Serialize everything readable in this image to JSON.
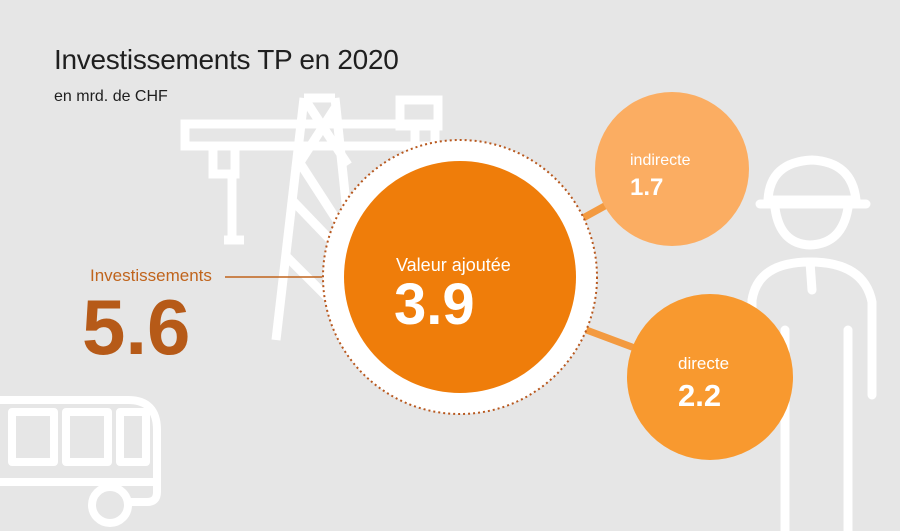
{
  "title": "Investissements TP en 2020",
  "subtitle": "en mrd. de CHF",
  "investments": {
    "label": "Investissements",
    "value": "5.6"
  },
  "value_added": {
    "label": "Valeur ajoutée",
    "value": "3.9"
  },
  "indirect": {
    "label": "indirecte",
    "value": "1.7"
  },
  "direct": {
    "label": "directe",
    "value": "2.2"
  },
  "colors": {
    "background": "#e6e6e6",
    "investments_text": "#b65a18",
    "main_circle": "#ef7d0a",
    "indirect_circle": "#fbad62",
    "direct_circle": "#f8992f",
    "connector": "#f39a40",
    "dotted_ring": "#b8581e",
    "pictograms": "#ffffff"
  },
  "icons": [
    "crane-icon",
    "construction-worker-icon",
    "bus-icon"
  ]
}
